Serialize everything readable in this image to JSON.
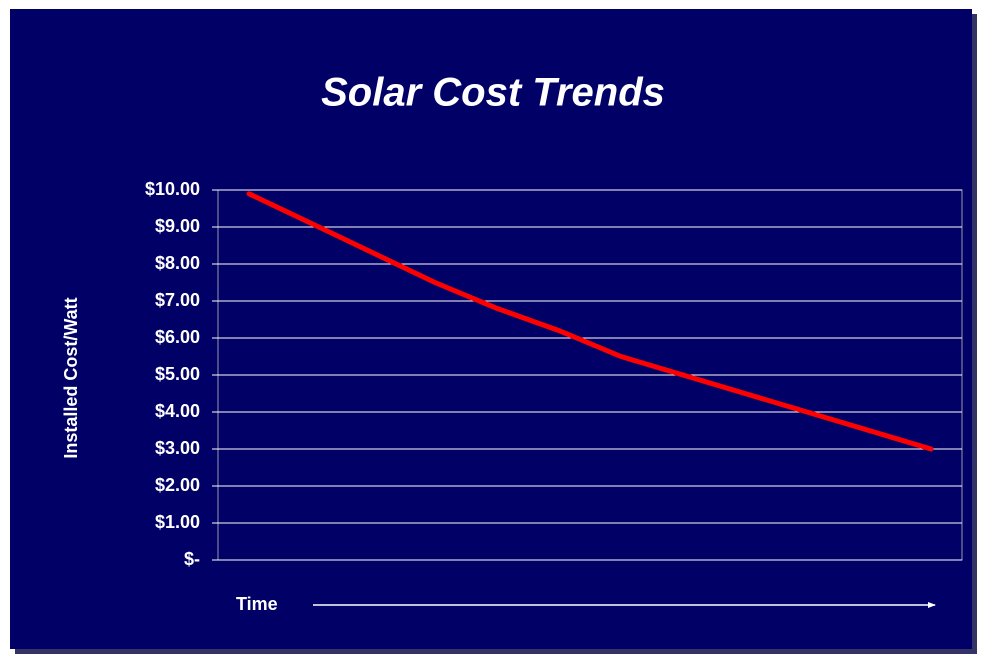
{
  "chart_data": {
    "type": "line",
    "title": "Solar Cost Trends",
    "y_label": "Installed Cost/Watt",
    "x_label": "Time",
    "categories": [
      null,
      null,
      null,
      null,
      null,
      null,
      null,
      null,
      null,
      null,
      null,
      null
    ],
    "values": [
      9.9,
      9.1,
      8.3,
      7.5,
      6.8,
      6.2,
      5.5,
      5.0,
      4.5,
      4.0,
      3.5,
      3.0
    ],
    "color": "#ff0000",
    "ylim": [
      0,
      10
    ],
    "yticks": [
      {
        "value": 0,
        "label": "$-"
      },
      {
        "value": 1,
        "label": "$1.00"
      },
      {
        "value": 2,
        "label": "$2.00"
      },
      {
        "value": 3,
        "label": "$3.00"
      },
      {
        "value": 4,
        "label": "$4.00"
      },
      {
        "value": 5,
        "label": "$5.00"
      },
      {
        "value": 6,
        "label": "$6.00"
      },
      {
        "value": 7,
        "label": "$7.00"
      },
      {
        "value": 8,
        "label": "$8.00"
      },
      {
        "value": 9,
        "label": "$9.00"
      },
      {
        "value": 10,
        "label": "$10.00"
      }
    ],
    "grid": true
  }
}
